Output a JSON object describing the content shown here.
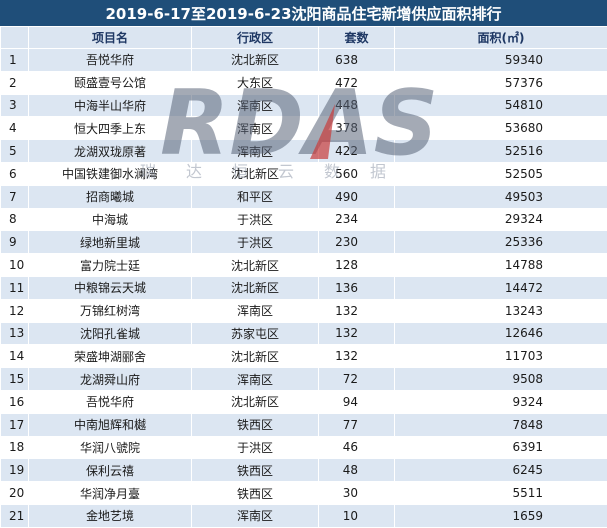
{
  "title": "2019-6-17至2019-6-23沈阳商品住宅新增供应面积排行",
  "headers": {
    "rank": "",
    "name": "项目名",
    "district": "行政区",
    "count": "套数",
    "area": "面积(㎡)"
  },
  "rows": [
    {
      "rank": "1",
      "name": "吾悦华府",
      "district": "沈北新区",
      "count": "638",
      "area": "59340"
    },
    {
      "rank": "2",
      "name": "颐盛壹号公馆",
      "district": "大东区",
      "count": "472",
      "area": "57376"
    },
    {
      "rank": "3",
      "name": "中海半山华府",
      "district": "浑南区",
      "count": "448",
      "area": "54810"
    },
    {
      "rank": "4",
      "name": "恒大四季上东",
      "district": "浑南区",
      "count": "378",
      "area": "53680"
    },
    {
      "rank": "5",
      "name": "龙湖双珑原著",
      "district": "浑南区",
      "count": "422",
      "area": "52516"
    },
    {
      "rank": "6",
      "name": "中国铁建御水澜湾",
      "district": "沈北新区",
      "count": "560",
      "area": "52505"
    },
    {
      "rank": "7",
      "name": "招商曦城",
      "district": "和平区",
      "count": "490",
      "area": "49503"
    },
    {
      "rank": "8",
      "name": "中海城",
      "district": "于洪区",
      "count": "234",
      "area": "29324"
    },
    {
      "rank": "9",
      "name": "绿地新里城",
      "district": "于洪区",
      "count": "230",
      "area": "25336"
    },
    {
      "rank": "10",
      "name": "富力院士廷",
      "district": "沈北新区",
      "count": "128",
      "area": "14788"
    },
    {
      "rank": "11",
      "name": "中粮锦云天城",
      "district": "沈北新区",
      "count": "136",
      "area": "14472"
    },
    {
      "rank": "12",
      "name": "万锦红树湾",
      "district": "浑南区",
      "count": "132",
      "area": "13243"
    },
    {
      "rank": "13",
      "name": "沈阳孔雀城",
      "district": "苏家屯区",
      "count": "132",
      "area": "12646"
    },
    {
      "rank": "14",
      "name": "荣盛坤湖郦舍",
      "district": "沈北新区",
      "count": "132",
      "area": "11703"
    },
    {
      "rank": "15",
      "name": "龙湖舜山府",
      "district": "浑南区",
      "count": "72",
      "area": "9508"
    },
    {
      "rank": "16",
      "name": "吾悦华府",
      "district": "沈北新区",
      "count": "94",
      "area": "9324"
    },
    {
      "rank": "17",
      "name": "中南旭辉和樾",
      "district": "铁西区",
      "count": "77",
      "area": "7848"
    },
    {
      "rank": "18",
      "name": "华润八號院",
      "district": "于洪区",
      "count": "46",
      "area": "6391"
    },
    {
      "rank": "19",
      "name": "保利云禧",
      "district": "铁西区",
      "count": "48",
      "area": "6245"
    },
    {
      "rank": "20",
      "name": "华润净月臺",
      "district": "铁西区",
      "count": "30",
      "area": "5511"
    },
    {
      "rank": "21",
      "name": "金地艺境",
      "district": "浑南区",
      "count": "10",
      "area": "1659"
    }
  ],
  "watermark": {
    "logo": "RDAS",
    "subtitle": "瑞达恒云数据"
  },
  "colors": {
    "title_bg": "#1f4e79",
    "header_bg": "#dbe5f1",
    "odd_row": "#dce6f2"
  }
}
